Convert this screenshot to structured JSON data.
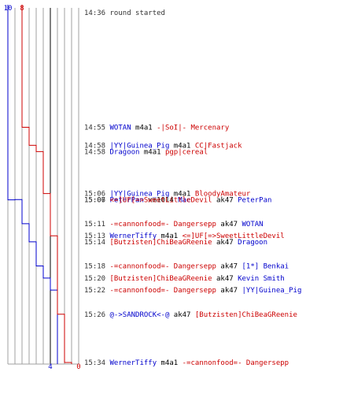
{
  "chart_data": {
    "type": "line",
    "title": "",
    "start_label": {
      "time": "14:36",
      "text": "round started"
    },
    "series": [
      {
        "name": "",
        "color": "#0000cc",
        "start": 10,
        "end": 4
      },
      {
        "name": "",
        "color": "#cc0000",
        "start": 8,
        "end": 0
      }
    ],
    "events": [
      {
        "time": "14:55",
        "killer": "WOTAN",
        "killer_team": "blue",
        "weapon": "m4a1",
        "victim": "-|SoI|- Mercenary",
        "victim_team": "red"
      },
      {
        "time": "14:58",
        "killer": "|YY|Guinea_Pig",
        "killer_team": "blue",
        "weapon": "m4a1",
        "victim": "CC|Fastjack",
        "victim_team": "red"
      },
      {
        "time": "14:58",
        "killer": "Dragoon",
        "killer_team": "blue",
        "weapon": "m4a1",
        "victim": "pgp|cereal",
        "victim_team": "red"
      },
      {
        "time": "15:06",
        "killer": "|YY|Guinea_Pig",
        "killer_team": "blue",
        "weapon": "m4a1",
        "victim": "BloodyAmateur",
        "victim_team": "red"
      },
      {
        "time": "15:06",
        "killer": "PeterPan",
        "killer_team": "blue",
        "weapon": "xm1014",
        "victim": "Mac",
        "victim_team": "blue"
      },
      {
        "time": "15:07",
        "killer": "<=]UF[=>SweetLittleDevil",
        "killer_team": "red",
        "weapon": "ak47",
        "victim": "PeterPan",
        "victim_team": "blue"
      },
      {
        "time": "15:11",
        "killer": "-=cannonfood=- Dangersepp",
        "killer_team": "red",
        "weapon": "ak47",
        "victim": "WOTAN",
        "victim_team": "blue"
      },
      {
        "time": "15:13",
        "killer": "WernerTiffy",
        "killer_team": "blue",
        "weapon": "m4a1",
        "victim": "<=]UF[=>SweetLittleDevil",
        "victim_team": "red"
      },
      {
        "time": "15:14",
        "killer": "[Butzisten]ChiBeaGReenie",
        "killer_team": "red",
        "weapon": "ak47",
        "victim": "Dragoon",
        "victim_team": "blue"
      },
      {
        "time": "15:18",
        "killer": "-=cannonfood=- Dangersepp",
        "killer_team": "red",
        "weapon": "ak47",
        "victim": "[1*] Benkai",
        "victim_team": "blue"
      },
      {
        "time": "15:20",
        "killer": "[Butzisten]ChiBeaGReenie",
        "killer_team": "red",
        "weapon": "ak47",
        "victim": "Kevin Smith",
        "victim_team": "blue"
      },
      {
        "time": "15:22",
        "killer": "-=cannonfood=- Dangersepp",
        "killer_team": "red",
        "weapon": "ak47",
        "victim": "|YY|Guinea_Pig",
        "victim_team": "blue"
      },
      {
        "time": "15:26",
        "killer": "@->SANDROCK<-@",
        "killer_team": "blue",
        "weapon": "ak47",
        "victim": "[Butzisten]ChiBeaGReenie",
        "victim_team": "red"
      },
      {
        "time": "15:34",
        "killer": "WernerTiffy",
        "killer_team": "blue",
        "weapon": "m4a1",
        "victim": "-=cannonfood=- Dangersepp",
        "victim_team": "red"
      }
    ],
    "team_colors": {
      "blue": "#0000cc",
      "red": "#cc0000",
      "neutral": "#000000",
      "time": "#333333",
      "grid": "#a0a0a0",
      "axis": "#000000"
    }
  }
}
